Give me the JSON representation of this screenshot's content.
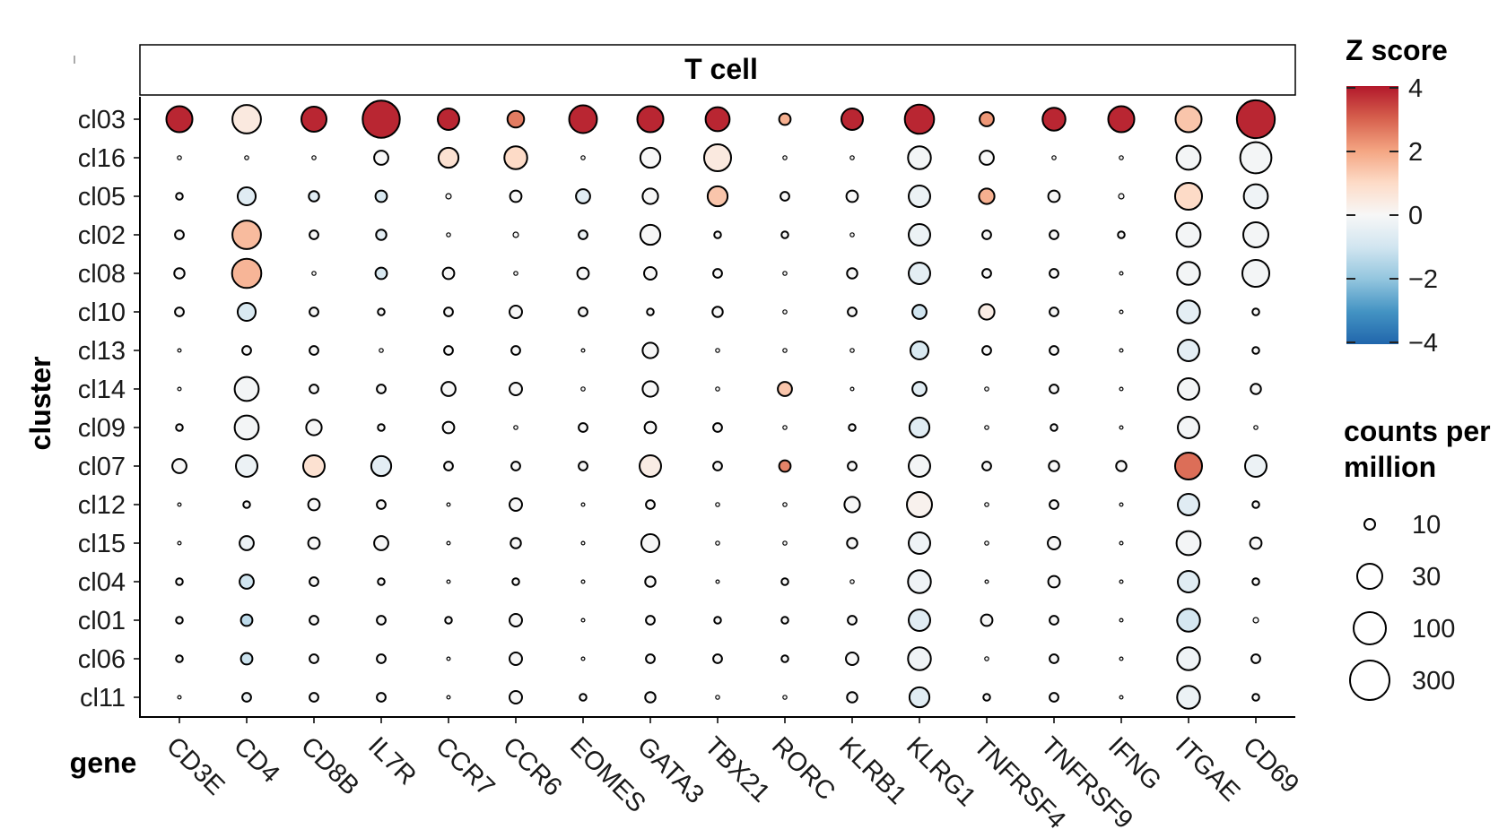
{
  "chart_data": {
    "type": "scatter",
    "subtype": "dot-plot",
    "facet_label": "T cell",
    "xlabel": "gene",
    "ylabel": "cluster",
    "genes": [
      "CD3E",
      "CD4",
      "CD8B",
      "IL7R",
      "CCR7",
      "CCR6",
      "EOMES",
      "GATA3",
      "TBX21",
      "RORC",
      "KLRB1",
      "KLRG1",
      "TNFRSF4",
      "TNFRSF9",
      "IFNG",
      "ITGAE",
      "CD69"
    ],
    "clusters": [
      "cl03",
      "cl16",
      "cl05",
      "cl02",
      "cl08",
      "cl10",
      "cl13",
      "cl14",
      "cl09",
      "cl07",
      "cl12",
      "cl15",
      "cl04",
      "cl01",
      "cl06",
      "cl11"
    ],
    "cpm": [
      [
        45,
        60,
        40,
        140,
        25,
        12,
        55,
        45,
        35,
        5,
        25,
        65,
        8,
        30,
        45,
        45,
        150
      ],
      [
        0.5,
        0.5,
        0.5,
        8,
        20,
        30,
        0.5,
        20,
        50,
        0.5,
        0.5,
        30,
        8,
        0.5,
        0.5,
        35,
        80
      ],
      [
        2,
        15,
        4,
        5,
        1.5,
        5,
        8,
        10,
        20,
        3,
        5,
        25,
        10,
        5,
        1.5,
        50,
        35
      ],
      [
        3,
        60,
        3,
        4,
        0.5,
        1.5,
        3,
        20,
        2,
        2,
        0.5,
        25,
        3,
        3,
        2,
        35,
        40
      ],
      [
        4,
        65,
        0.5,
        5,
        5,
        0.5,
        5,
        6,
        3,
        0.5,
        4,
        25,
        3,
        3,
        1,
        30,
        50
      ],
      [
        3,
        15,
        3,
        2,
        3,
        6,
        3,
        2,
        4,
        0.5,
        3,
        8,
        10,
        3,
        1,
        30,
        2
      ],
      [
        1,
        3,
        3,
        0.5,
        3,
        3,
        1,
        10,
        0.5,
        0.5,
        0.5,
        15,
        3,
        3,
        1,
        25,
        2
      ],
      [
        1,
        35,
        3,
        3,
        8,
        6,
        0.5,
        10,
        0.5,
        8,
        1,
        8,
        0.5,
        3,
        1,
        25,
        4
      ],
      [
        2,
        35,
        10,
        2,
        5,
        0.5,
        3,
        5,
        3,
        0.5,
        2,
        20,
        0.5,
        2,
        1,
        25,
        0.5
      ],
      [
        8,
        25,
        25,
        20,
        3,
        3,
        3,
        25,
        3,
        5,
        3,
        25,
        3,
        4,
        4,
        50,
        25
      ],
      [
        1,
        2,
        5,
        3,
        1,
        6,
        1,
        3,
        0.5,
        0.5,
        10,
        40,
        0.5,
        3,
        1,
        25,
        2
      ],
      [
        1,
        8,
        5,
        8,
        1,
        4,
        1,
        15,
        0.5,
        0.5,
        4,
        25,
        0.5,
        6,
        1,
        35,
        5
      ],
      [
        2,
        8,
        3,
        2,
        1,
        2,
        1,
        4,
        1,
        2,
        0.5,
        30,
        1,
        5,
        1,
        25,
        2
      ],
      [
        2,
        5,
        3,
        3,
        2,
        6,
        1,
        3,
        2,
        2,
        3,
        25,
        5,
        3,
        1,
        30,
        1.5
      ],
      [
        2,
        5,
        3,
        3,
        1,
        6,
        1,
        3,
        3,
        2,
        6,
        30,
        0.5,
        3,
        1,
        30,
        3
      ],
      [
        1,
        3,
        3,
        3,
        1,
        6,
        2,
        4,
        0.5,
        0.5,
        4,
        20,
        2,
        3,
        1,
        30,
        2
      ]
    ],
    "zscore": [
      [
        3.8,
        0.5,
        3.8,
        3.8,
        3.8,
        2.6,
        3.8,
        3.8,
        3.8,
        1.8,
        3.8,
        3.8,
        2.2,
        3.8,
        3.8,
        1.4,
        3.8
      ],
      [
        0,
        0,
        0,
        0,
        0.8,
        1.0,
        0,
        0,
        0.5,
        0,
        0,
        -0.1,
        0,
        0,
        0,
        -0.1,
        -0.1
      ],
      [
        0,
        -0.6,
        -0.6,
        -0.8,
        0,
        0,
        -0.6,
        0,
        1.4,
        0,
        0,
        -0.3,
        1.8,
        0,
        0,
        1.0,
        -0.2
      ],
      [
        0,
        1.6,
        0,
        -0.5,
        0,
        0,
        -0.3,
        0,
        0,
        0,
        0,
        -0.3,
        0,
        0,
        0,
        -0.1,
        -0.1
      ],
      [
        0,
        1.7,
        0,
        -0.8,
        0,
        0,
        0,
        0,
        0,
        0,
        0,
        -0.5,
        0,
        0,
        0,
        -0.1,
        -0.1
      ],
      [
        0,
        -0.8,
        0,
        0,
        0,
        0,
        0,
        0,
        0,
        0,
        0,
        -1.0,
        0.4,
        0,
        0,
        -0.5,
        0
      ],
      [
        0,
        0,
        0,
        0,
        0,
        0,
        0,
        0,
        0,
        0,
        0,
        -0.8,
        0,
        0,
        0,
        -0.5,
        0
      ],
      [
        0,
        -0.1,
        0,
        0,
        0,
        0,
        0,
        0,
        0,
        1.4,
        0,
        -0.6,
        0,
        0,
        0,
        -0.1,
        0
      ],
      [
        0,
        -0.1,
        0,
        0,
        0,
        0,
        0,
        0,
        0,
        0,
        0,
        -0.6,
        0,
        0,
        0,
        -0.1,
        0
      ],
      [
        0,
        -0.3,
        0.8,
        -0.5,
        0,
        0,
        0,
        0.4,
        0,
        2.5,
        0,
        -0.1,
        0,
        0,
        0,
        2.8,
        -0.3
      ],
      [
        0,
        0,
        0,
        0,
        0,
        0,
        0,
        0,
        0,
        0,
        0,
        0.2,
        0,
        0,
        0,
        -0.6,
        0
      ],
      [
        0,
        -0.3,
        0,
        0,
        0,
        0,
        0,
        0,
        0,
        0,
        0,
        -0.2,
        0,
        0,
        0,
        -0.1,
        0
      ],
      [
        0,
        -1.0,
        0,
        0,
        0,
        0,
        0,
        0,
        0,
        0,
        0,
        -0.2,
        0,
        0,
        0,
        -0.6,
        0
      ],
      [
        0,
        -1.3,
        0,
        0,
        0,
        0,
        0,
        0,
        0,
        0,
        0,
        -0.6,
        0,
        0,
        0,
        -0.9,
        0
      ],
      [
        0,
        -1.1,
        0,
        0,
        0,
        0,
        0,
        0,
        0,
        0,
        0,
        -0.2,
        0,
        0,
        0,
        -0.2,
        0
      ],
      [
        0,
        -0.3,
        0,
        0,
        0,
        0,
        0,
        0,
        0,
        0,
        0,
        -0.6,
        0,
        0,
        0,
        -0.3,
        0
      ]
    ],
    "color_legend": {
      "title": "Z score",
      "ticks": [
        "4",
        "2",
        "0",
        "−2",
        "−4"
      ],
      "range": [
        -4,
        4
      ],
      "palette": [
        "#2166ac",
        "#4393c3",
        "#92c5de",
        "#d1e5f0",
        "#f7f7f7",
        "#fddbc7",
        "#f4a582",
        "#d6604d",
        "#b2182b"
      ]
    },
    "size_legend": {
      "title_line1": "counts per",
      "title_line2": "million",
      "labels": [
        "10",
        "30",
        "100",
        "300"
      ],
      "values": [
        10,
        30,
        100,
        300
      ]
    }
  }
}
